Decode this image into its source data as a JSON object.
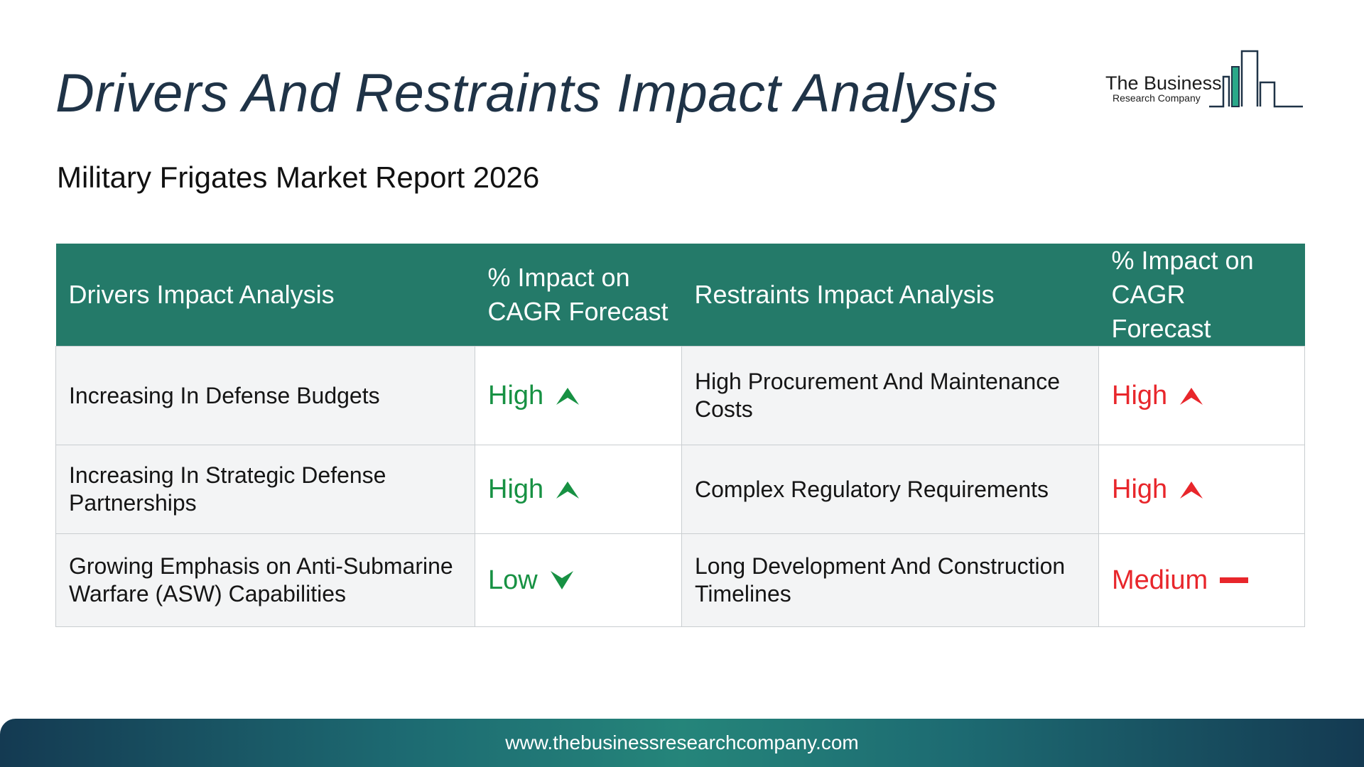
{
  "title": "Drivers And Restraints Impact Analysis",
  "subtitle": "Military Frigates Market Report 2026",
  "logo": {
    "line1": "The Business",
    "line2": "Research Company"
  },
  "table": {
    "headers": {
      "drivers": "Drivers Impact Analysis",
      "drivers_impact": "% Impact on CAGR Forecast",
      "restraints": "Restraints Impact Analysis",
      "restraints_impact": "% Impact on CAGR Forecast"
    },
    "rows": [
      {
        "driver": "Increasing In Defense Budgets",
        "driver_level": "High",
        "driver_icon": "arrow-up-icon",
        "restraint": "High Procurement And Maintenance Costs",
        "restraint_level": "High",
        "restraint_icon": "arrow-up-icon"
      },
      {
        "driver": "Increasing In Strategic Defense Partnerships",
        "driver_level": "High",
        "driver_icon": "arrow-up-icon",
        "restraint": "Complex Regulatory Requirements",
        "restraint_level": "High",
        "restraint_icon": "arrow-up-icon"
      },
      {
        "driver": "Growing Emphasis on Anti-Submarine Warfare (ASW) Capabilities",
        "driver_level": "Low",
        "driver_icon": "arrow-down-icon",
        "restraint": "Long Development And Construction Timelines",
        "restraint_level": "Medium",
        "restraint_icon": "dash-icon"
      }
    ]
  },
  "colors": {
    "header_bg": "#247a69",
    "driver_level": "#179143",
    "restraint_level": "#e8262b",
    "title": "#1f3347"
  },
  "footer": {
    "url": "www.thebusinessresearchcompany.com"
  }
}
